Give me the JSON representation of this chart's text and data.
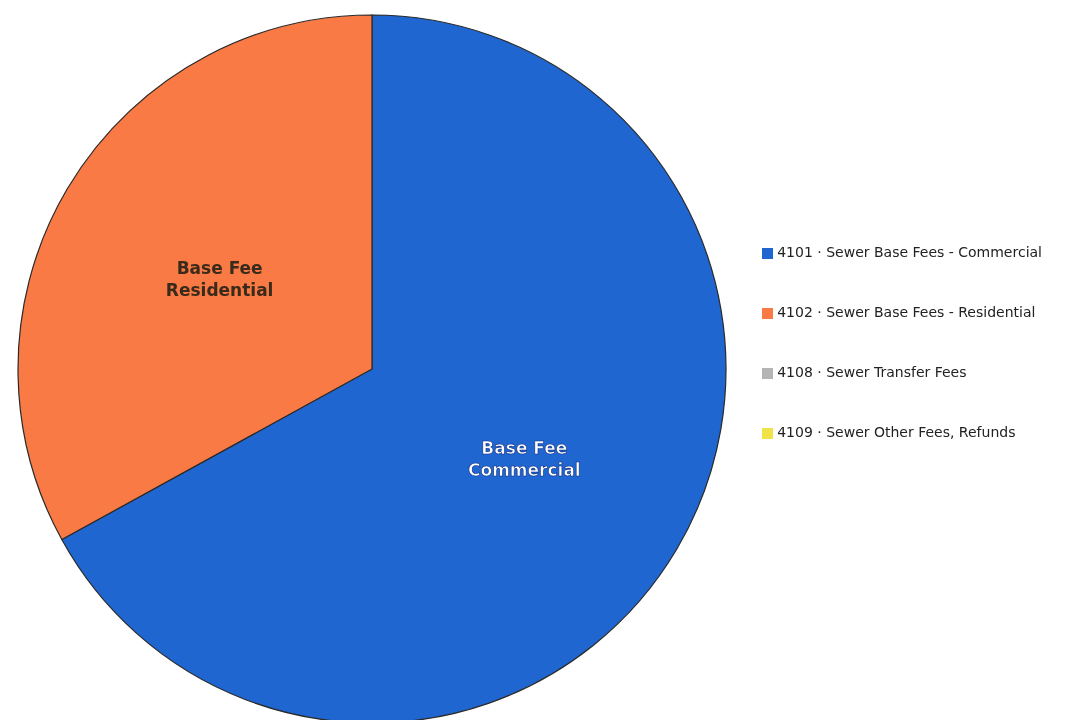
{
  "chart_data": {
    "type": "pie",
    "categories": [
      "4101 · Sewer Base Fees - Commercial",
      "4102 · Sewer Base Fees - Residential",
      "4108 · Sewer Transfer Fees",
      "4109 · Sewer Other Fees, Refunds"
    ],
    "values": [
      67,
      33,
      0,
      0
    ],
    "colors": [
      "#1f66d1",
      "#f97a45",
      "#b4b4b4",
      "#f2e24a"
    ],
    "annotations": [
      "Base Fee\nCommercial",
      "Base Fee\nResidential"
    ],
    "legend": "right"
  }
}
